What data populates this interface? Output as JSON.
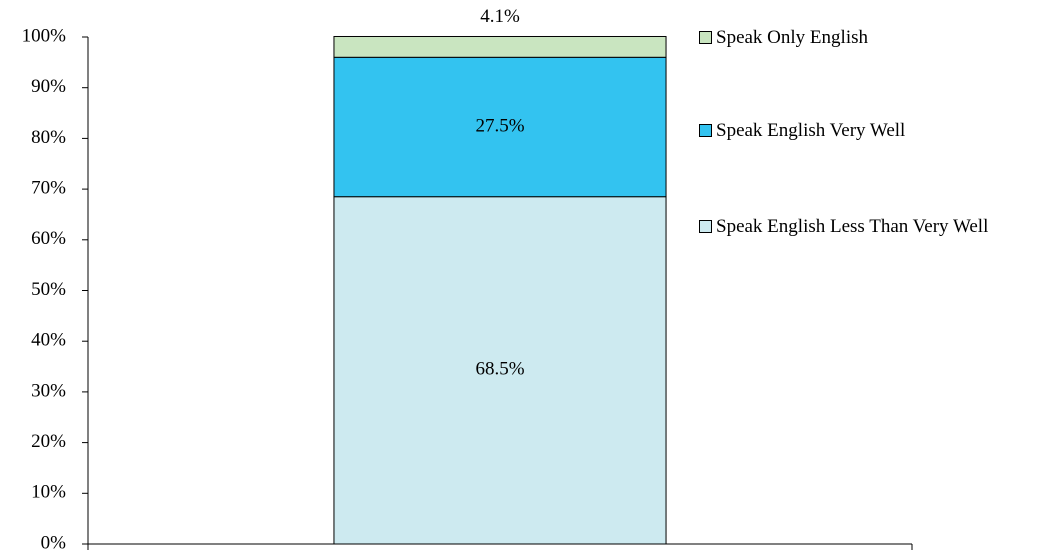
{
  "chart_data": {
    "type": "stacked_bar",
    "categories": [
      null
    ],
    "series": [
      {
        "name": "Speak English Less Than Very Well",
        "color": "#cdeaf0",
        "values": [
          68.5
        ],
        "value_labels": [
          "68.5%"
        ]
      },
      {
        "name": "Speak English Very Well",
        "color": "#33c3f0",
        "values": [
          27.5
        ],
        "value_labels": [
          "27.5%"
        ]
      },
      {
        "name": "Speak Only English",
        "color": "#c9e5c0",
        "values": [
          4.1
        ],
        "value_labels": [
          "4.1%"
        ]
      }
    ],
    "ylim": [
      0,
      100
    ],
    "yticks": [
      {
        "value": 0,
        "label": "0%"
      },
      {
        "value": 10,
        "label": "10%"
      },
      {
        "value": 20,
        "label": "20%"
      },
      {
        "value": 30,
        "label": "30%"
      },
      {
        "value": 40,
        "label": "40%"
      },
      {
        "value": 50,
        "label": "50%"
      },
      {
        "value": 60,
        "label": "60%"
      },
      {
        "value": 70,
        "label": "70%"
      },
      {
        "value": 80,
        "label": "80%"
      },
      {
        "value": 90,
        "label": "90%"
      },
      {
        "value": 100,
        "label": "100%"
      }
    ],
    "legend": "right"
  }
}
